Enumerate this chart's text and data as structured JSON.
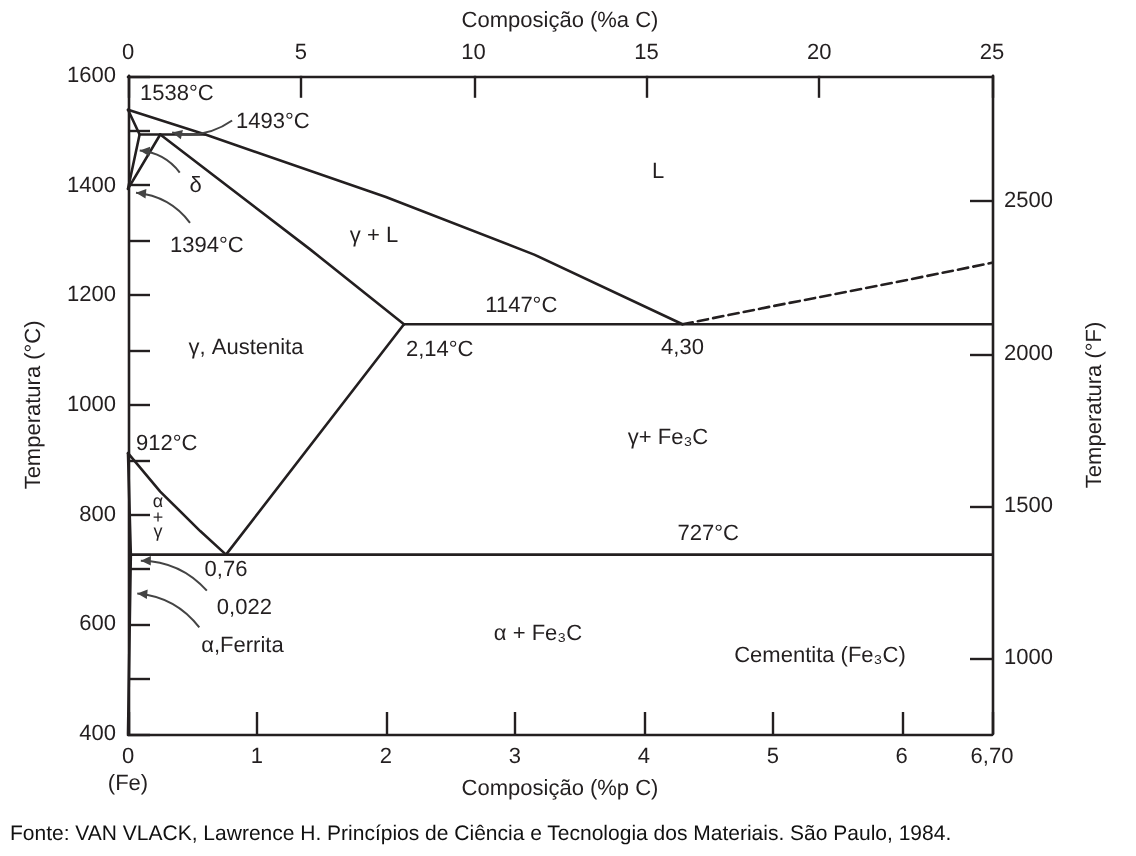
{
  "chart_data": {
    "type": "line",
    "xlabel": "Composição (%p C)",
    "x2label": "Composição (%a C)",
    "ylabel": "Temperatura (°C)",
    "y2label": "Temperatura (°F)",
    "xlim": [
      0,
      6.7
    ],
    "xticks": [
      0,
      1,
      2,
      3,
      4,
      5,
      6,
      {
        "value": 6.7,
        "label": "6,70"
      }
    ],
    "x2lim": [
      0,
      25
    ],
    "x2ticks": [
      0,
      5,
      10,
      15,
      20,
      25
    ],
    "ylim": [
      400,
      1600
    ],
    "yticks": [
      400,
      {
        "value": 500,
        "label": null
      },
      600,
      {
        "value": 700,
        "label": null
      },
      800,
      {
        "value": 900,
        "label": null
      },
      1000,
      {
        "value": 1100,
        "label": null
      },
      1200,
      {
        "value": 1300,
        "label": null
      },
      1400,
      {
        "value": 1500,
        "label": null
      },
      1600
    ],
    "y2lim": [
      752,
      2912
    ],
    "y2ticks": [
      1000,
      1500,
      2000,
      2500
    ],
    "marker": "none",
    "line_style": "solid",
    "series": [
      {
        "color": "#231f20",
        "x": [
          0,
          0.6,
          2.0,
          3.15,
          4.3
        ],
        "values": [
          1538,
          1493,
          1379,
          1274,
          1147
        ]
      },
      {
        "color": "#231f20",
        "line_style": "dashed",
        "x": [
          4.3,
          5.0,
          5.94,
          6.7
        ],
        "values": [
          1147,
          1180,
          1223,
          1259
        ]
      },
      {
        "color": "#231f20",
        "x": [
          2.14,
          6.7
        ],
        "values": [
          1147,
          1147
        ]
      },
      {
        "color": "#231f20",
        "x": [
          0.25,
          1.41,
          2.14
        ],
        "values": [
          1493,
          1284,
          1147
        ]
      },
      {
        "color": "#231f20",
        "x": [
          0.09,
          0.6
        ],
        "values": [
          1493,
          1493
        ]
      },
      {
        "color": "#231f20",
        "x": [
          0,
          0.09,
          0
        ],
        "values": [
          1538,
          1493,
          1394
        ]
      },
      {
        "color": "#231f20",
        "x": [
          0.25,
          0
        ],
        "values": [
          1493,
          1394
        ]
      },
      {
        "color": "#231f20",
        "x": [
          0,
          0.25,
          0.56,
          0.76,
          2.14
        ],
        "values": [
          912,
          842,
          770,
          727,
          1147
        ]
      },
      {
        "color": "#231f20",
        "x": [
          0.022,
          6.7
        ],
        "values": [
          727,
          727
        ]
      },
      {
        "color": "#231f20",
        "x": [
          0,
          0.022,
          0
        ],
        "values": [
          912,
          727,
          400
        ]
      }
    ],
    "annotations": [
      {
        "text": "1538°C",
        "x": 0,
        "y": 1538
      },
      {
        "text": "1493°C",
        "x": 0.28,
        "y": 1493
      },
      {
        "text": "δ",
        "x": 0.06,
        "y": 1460
      },
      {
        "text": "1394°C",
        "x": 0,
        "y": 1394
      },
      "γ + L",
      "L",
      {
        "text": "1147°C",
        "x": 3.05,
        "y": 1147
      },
      {
        "text": "2,14°C",
        "x": 2.14,
        "y": 1147
      },
      {
        "text": "4,30",
        "x": 4.3,
        "y": 1147
      },
      "γ, Austenita",
      "γ+ Fe₃C",
      {
        "text": "912°C",
        "x": 0,
        "y": 912
      },
      "α\n+\nγ",
      {
        "text": "0,76",
        "x": 0.76,
        "y": 727
      },
      {
        "text": "727°C",
        "x": 4.5,
        "y": 727
      },
      {
        "text": "0,022",
        "x": 0.022,
        "y": 727
      },
      {
        "text": "α,Ferrita",
        "x": 0.01,
        "y": 660
      },
      "α + Fe₃C",
      "Cementita (Fe₃C)",
      {
        "text": "(Fe)",
        "x": 0,
        "y": 400
      },
      "Fonte: VAN VLACK, Lawrence H. Princípios de Ciência e Tecnologia dos Materiais. São Paulo, 1984."
    ]
  }
}
